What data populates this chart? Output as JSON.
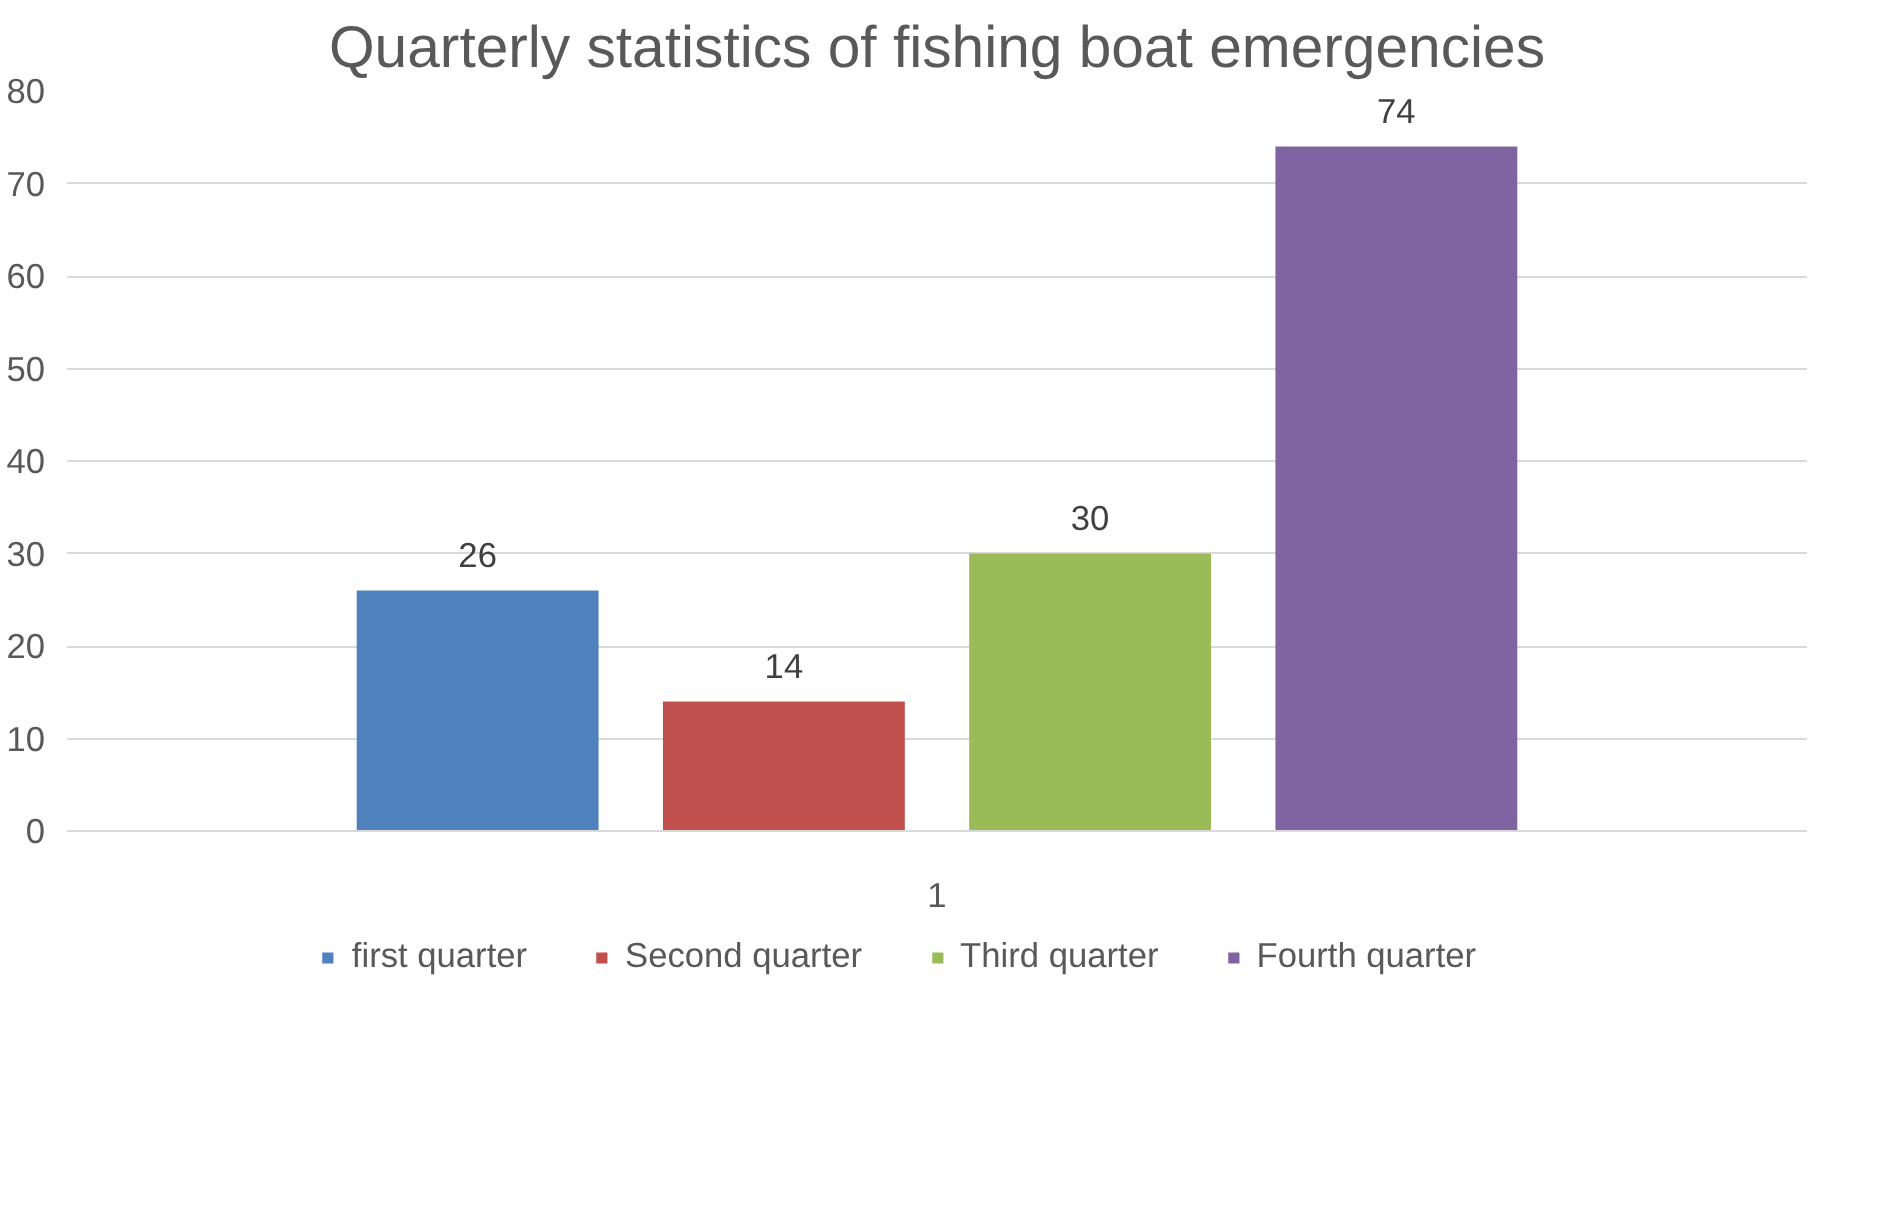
{
  "chart_data": {
    "type": "bar",
    "title": "Quarterly statistics of fishing boat emergencies",
    "categories": [
      "1"
    ],
    "series": [
      {
        "name": "first quarter",
        "color": "#4f81bd",
        "values": [
          26
        ]
      },
      {
        "name": "Second quarter",
        "color": "#c0504d",
        "values": [
          14
        ]
      },
      {
        "name": "Third quarter",
        "color": "#9bbb59",
        "values": [
          30
        ]
      },
      {
        "name": "Fourth quarter",
        "color": "#8064a2",
        "values": [
          74
        ]
      }
    ],
    "ylim": [
      0,
      80
    ],
    "yticks": [
      0,
      10,
      20,
      30,
      40,
      50,
      60,
      70,
      80
    ],
    "grid": "y",
    "legend": "bottom",
    "data_labels": true
  }
}
